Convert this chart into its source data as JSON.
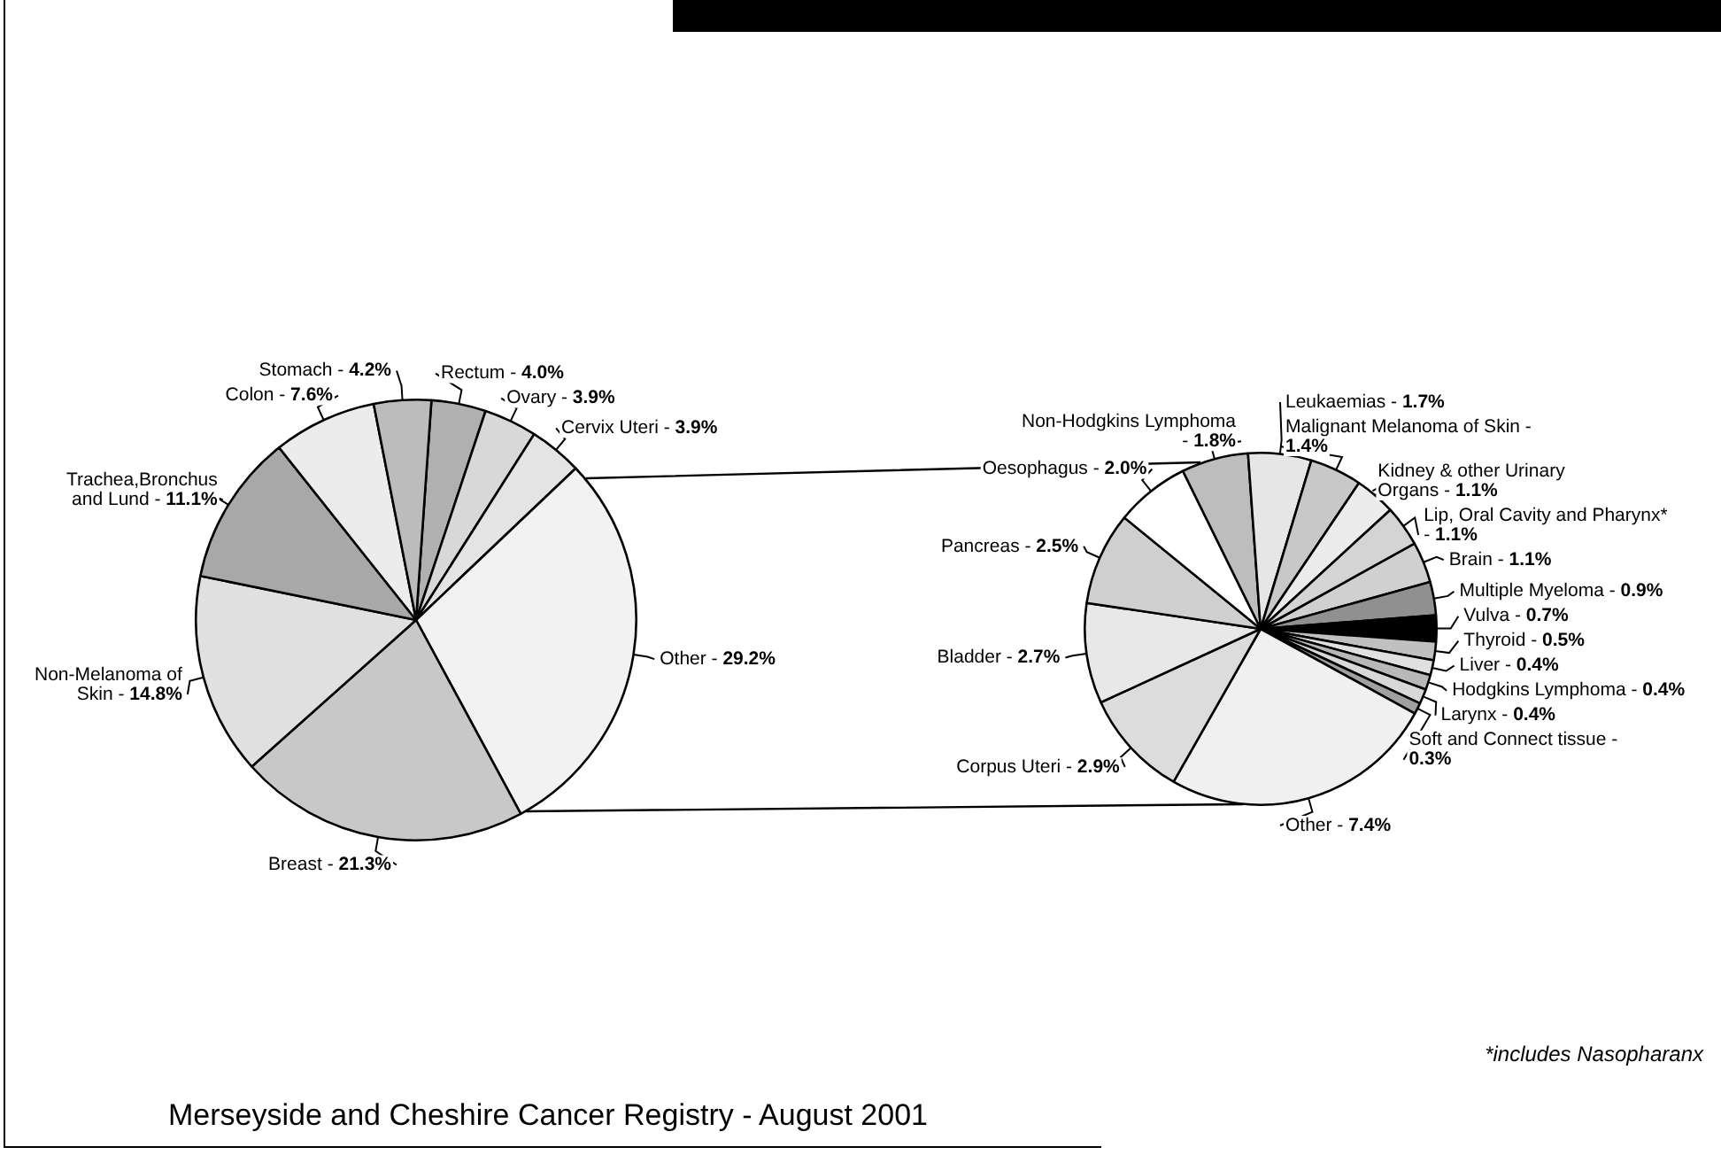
{
  "chart_data": [
    {
      "type": "pie",
      "title": "Merseyside and Cheshire Cancer Registry - August 2001",
      "categories": [
        "Rectum -",
        "Ovary -",
        "Cervix Uteri -",
        "Other -",
        "Breast -",
        "Non-Melanoma of Skin -",
        "Trachea,Bronchus and Lund -",
        "Colon -",
        "Stomach -"
      ],
      "values": [
        4.0,
        3.9,
        3.9,
        29.2,
        21.3,
        14.8,
        11.1,
        7.6,
        4.2
      ],
      "value_labels": [
        "4.0%",
        "3.9%",
        "3.9%",
        "29.2%",
        "21.3%",
        "14.8%",
        "11.1%",
        "7.6%",
        "4.2%"
      ],
      "colors": [
        "#b0b0b0",
        "#d8d8d8",
        "#e4e4e4",
        "#f2f2f2",
        "#c8c8c8",
        "#e0e0e0",
        "#a8a8a8",
        "#ececec",
        "#bcbcbc"
      ]
    },
    {
      "type": "pie",
      "categories": [
        "Brain -",
        "Multiple Myeloma -",
        "Vulva -",
        "Thyroid -",
        "Liver -",
        "Hodgkins Lymphoma -",
        "Larynx -",
        "Soft and Connect tissue -",
        "Other -",
        "Corpus Uteri -",
        "Bladder -",
        "Pancreas -",
        "Oesophagus -",
        "Non-Hodgkins Lymphoma -",
        "Leukaemias -",
        "Malignant Melanoma of Skin -",
        "Kidney & other Urinary Organs -",
        "Lip, Oral Cavity and Pharynx* -"
      ],
      "values": [
        1.1,
        0.9,
        0.7,
        0.5,
        0.4,
        0.4,
        0.4,
        0.3,
        7.4,
        2.9,
        2.7,
        2.5,
        2.0,
        1.8,
        1.7,
        1.4,
        1.1,
        1.1
      ],
      "value_labels": [
        "1.1%",
        "0.9%",
        "0.7%",
        "0.5%",
        "0.4%",
        "0.4%",
        "0.4%",
        "0.3%",
        "7.4%",
        "2.9%",
        "2.7%",
        "2.5%",
        "2.0%",
        "1.8%",
        "1.7%",
        "1.4%",
        "1.1%",
        "1.1%"
      ],
      "colors": [
        "#d0d0d0",
        "#909090",
        "#000000",
        "#c0c0c0",
        "#e0e0e0",
        "#b8b8b8",
        "#d8d8d8",
        "#a0a0a0",
        "#f0f0f0",
        "#dcdcdc",
        "#e8e8e8",
        "#cfcfcf",
        "#ffffff",
        "#bdbdbd",
        "#e6e6e6",
        "#c8c8c8",
        "#ececec",
        "#d4d4d4"
      ],
      "annotations": [
        "*includes Nasopharanx"
      ]
    }
  ]
}
